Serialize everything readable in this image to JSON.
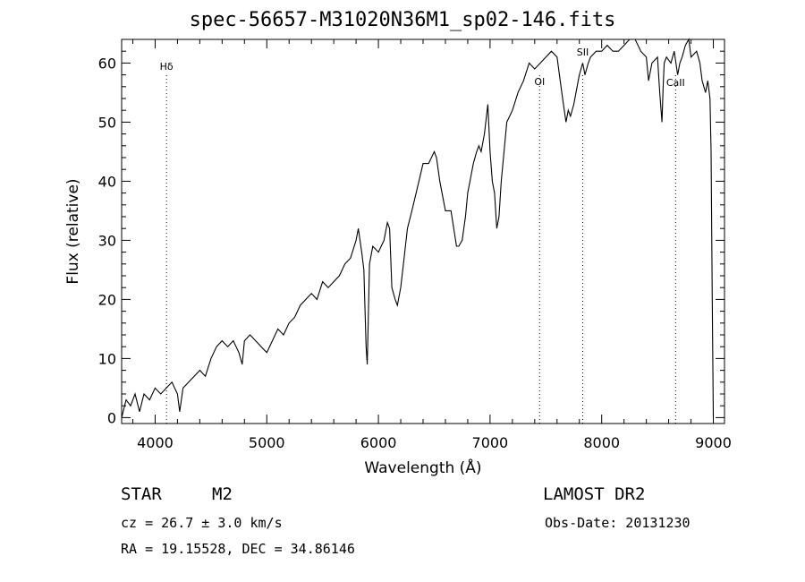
{
  "chart_data": {
    "type": "line",
    "title": "spec-56657-M31020N36M1_sp02-146.fits",
    "xlabel": "Wavelength (Å)",
    "ylabel": "Flux (relative)",
    "xlim": [
      3700,
      9100
    ],
    "ylim": [
      -1,
      64
    ],
    "xticks": [
      4000,
      5000,
      6000,
      7000,
      8000,
      9000
    ],
    "yticks": [
      0,
      10,
      20,
      30,
      40,
      50,
      60
    ],
    "grid": false,
    "line_color": "#000000",
    "series": [
      {
        "x": [
          3700,
          3740,
          3780,
          3820,
          3860,
          3900,
          3950,
          4000,
          4050,
          4100,
          4150,
          4200,
          4220,
          4250,
          4300,
          4350,
          4400,
          4450,
          4500,
          4550,
          4600,
          4650,
          4700,
          4750,
          4780,
          4800,
          4850,
          4900,
          4950,
          5000,
          5050,
          5100,
          5150,
          5200,
          5250,
          5300,
          5350,
          5400,
          5450,
          5500,
          5550,
          5600,
          5650,
          5700,
          5750,
          5800,
          5820,
          5850,
          5870,
          5890,
          5900,
          5920,
          5950,
          6000,
          6050,
          6080,
          6100,
          6120,
          6150,
          6170,
          6200,
          6230,
          6260,
          6300,
          6350,
          6400,
          6450,
          6500,
          6520,
          6550,
          6570,
          6600,
          6650,
          6700,
          6720,
          6750,
          6780,
          6800,
          6830,
          6850,
          6880,
          6900,
          6920,
          6950,
          6980,
          7000,
          7020,
          7040,
          7060,
          7080,
          7100,
          7120,
          7150,
          7200,
          7250,
          7300,
          7350,
          7400,
          7450,
          7500,
          7550,
          7600,
          7650,
          7680,
          7700,
          7720,
          7750,
          7800,
          7830,
          7850,
          7880,
          7900,
          7950,
          8000,
          8050,
          8100,
          8150,
          8200,
          8250,
          8300,
          8350,
          8400,
          8420,
          8450,
          8500,
          8520,
          8540,
          8550,
          8560,
          8580,
          8620,
          8650,
          8680,
          8700,
          8720,
          8750,
          8780,
          8800,
          8850,
          8880,
          8900,
          8930,
          8950,
          8970,
          8980,
          8990,
          9000
        ],
        "y": [
          0,
          3,
          2,
          4,
          1,
          4,
          3,
          5,
          4,
          5,
          6,
          4,
          1,
          5,
          6,
          7,
          8,
          7,
          10,
          12,
          13,
          12,
          13,
          11,
          9,
          13,
          14,
          13,
          12,
          11,
          13,
          15,
          14,
          16,
          17,
          19,
          20,
          21,
          20,
          23,
          22,
          23,
          24,
          26,
          27,
          30,
          32,
          28,
          25,
          12,
          9,
          26,
          29,
          28,
          30,
          33,
          32,
          22,
          20,
          19,
          22,
          27,
          32,
          35,
          39,
          43,
          43,
          45,
          44,
          40,
          38,
          35,
          35,
          29,
          29,
          30,
          34,
          38,
          41,
          43,
          45,
          46,
          45,
          48,
          53,
          45,
          40,
          38,
          32,
          34,
          40,
          44,
          50,
          52,
          55,
          57,
          60,
          59,
          60,
          61,
          62,
          61,
          54,
          50,
          52,
          51,
          53,
          58,
          60,
          58,
          60,
          61,
          62,
          62,
          63,
          62,
          62,
          63,
          64,
          64,
          62,
          61,
          57,
          60,
          61,
          55,
          50,
          56,
          60,
          61,
          60,
          62,
          58,
          60,
          61,
          63,
          64,
          61,
          62,
          60,
          57,
          55,
          57,
          54,
          45,
          20,
          0
        ]
      }
    ],
    "annotations": [
      {
        "label": "Hδ",
        "x": 4102
      },
      {
        "label": "OI",
        "x": 7444
      },
      {
        "label": "SII",
        "x": 7830
      },
      {
        "label": "CaII",
        "x": 8662
      }
    ]
  },
  "info": {
    "object_class": "STAR",
    "subclass": "M2",
    "redshift_line": "cz = 26.7 ± 3.0 km/s",
    "coords_line": "RA =  19.15528, DEC =  34.86146",
    "survey": "LAMOST DR2",
    "obs_date": "Obs-Date: 20131230"
  }
}
